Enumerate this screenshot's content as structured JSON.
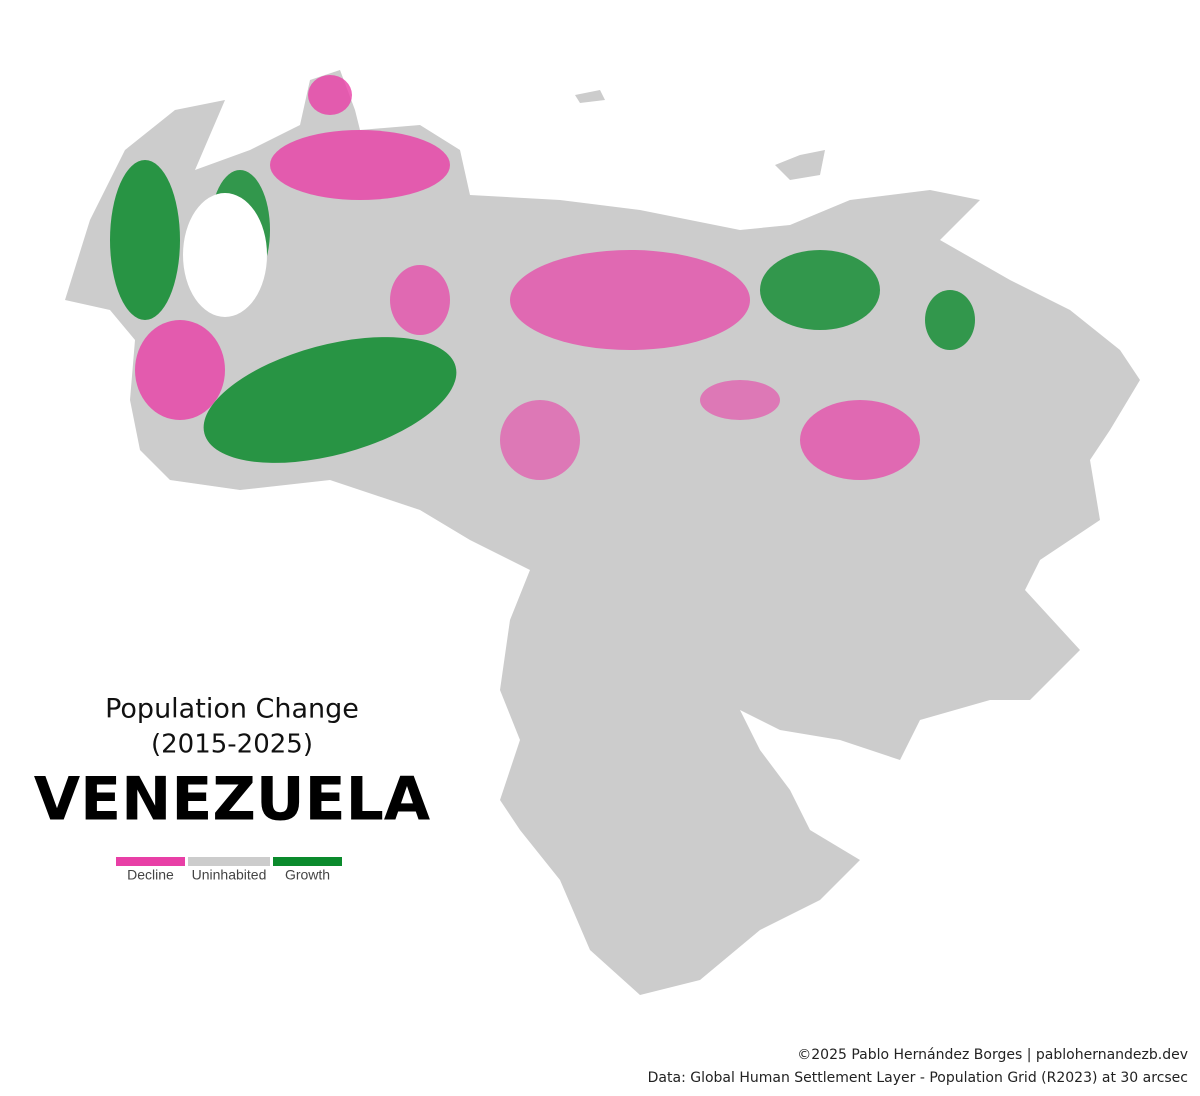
{
  "map": {
    "title": "Population Change",
    "subtitle": "(2015-2025)",
    "country": "VENEZUELA",
    "legend": [
      {
        "label": "Decline",
        "color": "#e83fa6"
      },
      {
        "label": "Uninhabited",
        "color": "#cccccc"
      },
      {
        "label": "Growth",
        "color": "#0b8a2c"
      }
    ],
    "credits": [
      "©2025 Pablo Hernández Borges | pablohernandezb.dev",
      "Data: Global Human Settlement Layer - Population Grid (R2023) at 30 arcsec"
    ]
  }
}
